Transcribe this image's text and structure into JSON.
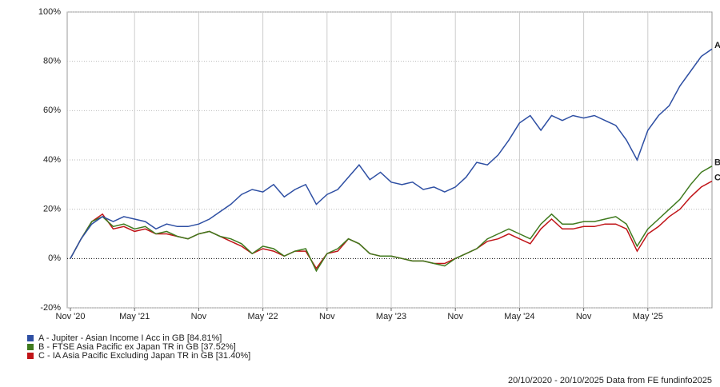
{
  "chart_data": {
    "type": "line",
    "categories": [
      "Nov '20",
      null,
      null,
      null,
      null,
      null,
      "May '21",
      null,
      null,
      null,
      null,
      null,
      "Nov",
      null,
      null,
      null,
      null,
      null,
      "May '22",
      null,
      null,
      null,
      null,
      null,
      "Nov",
      null,
      null,
      null,
      null,
      null,
      "May '23",
      null,
      null,
      null,
      null,
      null,
      "Nov",
      null,
      null,
      null,
      null,
      null,
      "May '24",
      null,
      null,
      null,
      null,
      null,
      "Nov",
      null,
      null,
      null,
      null,
      null,
      "May '25",
      null,
      null,
      null,
      null,
      null,
      null
    ],
    "series": [
      {
        "name": "A - Jupiter - Asian Income I Acc in GB [84.81%]",
        "end_label": "A",
        "color": "#2e4fa3",
        "values": [
          0,
          8,
          14,
          17,
          15,
          17,
          16,
          15,
          12,
          14,
          13,
          13,
          14,
          16,
          19,
          22,
          26,
          28,
          27,
          30,
          25,
          28,
          30,
          22,
          26,
          28,
          33,
          38,
          32,
          35,
          31,
          30,
          31,
          28,
          29,
          27,
          29,
          33,
          39,
          38,
          42,
          48,
          55,
          58,
          52,
          58,
          56,
          58,
          57,
          58,
          56,
          54,
          48,
          40,
          52,
          58,
          62,
          70,
          76,
          82,
          85
        ]
      },
      {
        "name": "B - FTSE Asia Pacific ex Japan TR in GB [37.52%]",
        "end_label": "B",
        "color": "#3f7a1e",
        "values": [
          0,
          8,
          15,
          17,
          13,
          14,
          12,
          13,
          10,
          11,
          9,
          8,
          10,
          11,
          9,
          8,
          6,
          2,
          5,
          4,
          1,
          3,
          4,
          -5,
          2,
          4,
          8,
          6,
          2,
          1,
          1,
          0,
          -1,
          -1,
          -2,
          -3,
          0,
          2,
          4,
          8,
          10,
          12,
          10,
          8,
          14,
          18,
          14,
          14,
          15,
          15,
          16,
          17,
          14,
          5,
          12,
          16,
          20,
          24,
          30,
          35,
          37.5
        ]
      },
      {
        "name": "C - IA Asia Pacific Excluding Japan TR in GB [31.40%]",
        "end_label": "C",
        "color": "#c01418",
        "values": [
          0,
          8,
          15,
          18,
          12,
          13,
          11,
          12,
          10,
          10,
          9,
          8,
          10,
          11,
          9,
          7,
          5,
          2,
          4,
          3,
          1,
          3,
          3,
          -4,
          2,
          3,
          8,
          6,
          2,
          1,
          1,
          0,
          -1,
          -1,
          -2,
          -2,
          0,
          2,
          4,
          7,
          8,
          10,
          8,
          6,
          12,
          16,
          12,
          12,
          13,
          13,
          14,
          14,
          12,
          3,
          10,
          13,
          17,
          20,
          25,
          29,
          31.4
        ]
      }
    ],
    "ylim": [
      -20,
      100
    ],
    "yticks": [
      {
        "value": -20,
        "label": "-20%"
      },
      {
        "value": 0,
        "label": "0%"
      },
      {
        "value": 20,
        "label": "20%"
      },
      {
        "value": 40,
        "label": "40%"
      },
      {
        "value": 60,
        "label": "60%"
      },
      {
        "value": 80,
        "label": "80%"
      },
      {
        "value": 100,
        "label": "100%"
      }
    ],
    "grid": true,
    "footnote": "20/10/2020 - 20/10/2025 Data from FE fundinfo2025"
  }
}
